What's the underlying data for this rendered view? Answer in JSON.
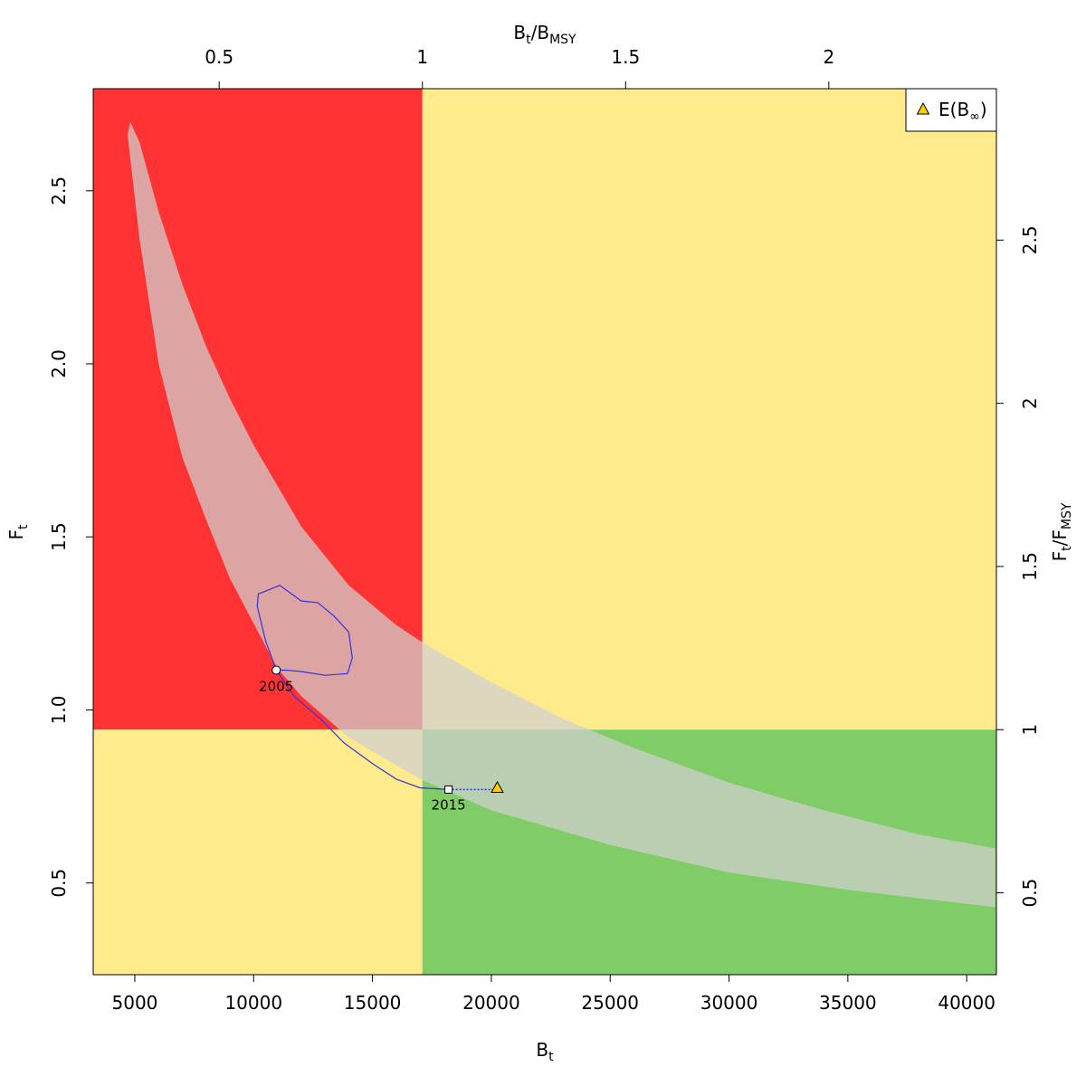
{
  "chart_data": {
    "type": "scatter",
    "axes": {
      "bottom": {
        "label": "B",
        "label_sub": "t",
        "ticks": [
          5000,
          10000,
          15000,
          20000,
          25000,
          30000,
          35000,
          40000
        ],
        "range": [
          3250,
          41250
        ]
      },
      "left": {
        "label": "F",
        "label_sub": "t",
        "ticks": [
          0.5,
          1.0,
          1.5,
          2.0,
          2.5
        ],
        "tick_labels": [
          "0.5",
          "1.0",
          "1.5",
          "2.0",
          "2.5"
        ],
        "range": [
          0.235,
          2.795
        ]
      },
      "top": {
        "label_main": "B",
        "label_sub1": "t",
        "label_slash": "/B",
        "label_sub2": "MSY",
        "ticks": [
          0.5,
          1,
          1.5,
          2
        ],
        "tick_labels": [
          "0.5",
          "1",
          "1.5",
          "2"
        ]
      },
      "right": {
        "label_main": "F",
        "label_sub1": "t",
        "label_slash": "/F",
        "label_sub2": "MSY",
        "ticks": [
          0.5,
          1,
          1.5,
          2,
          2.5
        ],
        "tick_labels": [
          "0.5",
          "1",
          "1.5",
          "2",
          "2.5"
        ]
      }
    },
    "reference": {
      "B_MSY": 17100,
      "F_MSY": 0.943
    },
    "zones": {
      "overfished_overfishing": "#ff3333",
      "caution": "#ffeb8c",
      "healthy": "#80cc66"
    },
    "confidence_band": {
      "color": "#d0d0d0",
      "upper_edge": [
        {
          "x": 4800,
          "y": 2.7
        },
        {
          "x": 5200,
          "y": 2.64
        },
        {
          "x": 6000,
          "y": 2.44
        },
        {
          "x": 7000,
          "y": 2.23
        },
        {
          "x": 8000,
          "y": 2.05
        },
        {
          "x": 9000,
          "y": 1.9
        },
        {
          "x": 10000,
          "y": 1.765
        },
        {
          "x": 12000,
          "y": 1.53
        },
        {
          "x": 14000,
          "y": 1.36
        },
        {
          "x": 16000,
          "y": 1.245
        },
        {
          "x": 17100,
          "y": 1.195
        },
        {
          "x": 20000,
          "y": 1.08
        },
        {
          "x": 23000,
          "y": 0.975
        },
        {
          "x": 26000,
          "y": 0.89
        },
        {
          "x": 30000,
          "y": 0.79
        },
        {
          "x": 34000,
          "y": 0.71
        },
        {
          "x": 38000,
          "y": 0.64
        },
        {
          "x": 41200,
          "y": 0.6
        }
      ],
      "lower_edge": [
        {
          "x": 4700,
          "y": 2.66
        },
        {
          "x": 5200,
          "y": 2.36
        },
        {
          "x": 6000,
          "y": 2.0
        },
        {
          "x": 7000,
          "y": 1.73
        },
        {
          "x": 8000,
          "y": 1.55
        },
        {
          "x": 9000,
          "y": 1.38
        },
        {
          "x": 10000,
          "y": 1.25
        },
        {
          "x": 11000,
          "y": 1.12
        },
        {
          "x": 12000,
          "y": 1.04
        },
        {
          "x": 14000,
          "y": 0.92
        },
        {
          "x": 17000,
          "y": 0.8
        },
        {
          "x": 20000,
          "y": 0.71
        },
        {
          "x": 25000,
          "y": 0.61
        },
        {
          "x": 30000,
          "y": 0.53
        },
        {
          "x": 35000,
          "y": 0.48
        },
        {
          "x": 41200,
          "y": 0.43
        }
      ]
    },
    "ellipse": {
      "color": "#3333dd",
      "points": [
        {
          "x": 10950,
          "y": 1.115
        },
        {
          "x": 10500,
          "y": 1.2
        },
        {
          "x": 10150,
          "y": 1.3
        },
        {
          "x": 10200,
          "y": 1.335
        },
        {
          "x": 11100,
          "y": 1.36
        },
        {
          "x": 11600,
          "y": 1.335
        },
        {
          "x": 12000,
          "y": 1.315
        },
        {
          "x": 12700,
          "y": 1.31
        },
        {
          "x": 13400,
          "y": 1.27
        },
        {
          "x": 14000,
          "y": 1.225
        },
        {
          "x": 14150,
          "y": 1.15
        },
        {
          "x": 13950,
          "y": 1.105
        },
        {
          "x": 13000,
          "y": 1.1
        },
        {
          "x": 12100,
          "y": 1.11
        },
        {
          "x": 11400,
          "y": 1.115
        },
        {
          "x": 10950,
          "y": 1.115
        }
      ]
    },
    "trajectory": {
      "color": "#3333dd",
      "points": [
        {
          "x": 10950,
          "y": 1.115
        },
        {
          "x": 11700,
          "y": 1.04
        },
        {
          "x": 12800,
          "y": 0.975
        },
        {
          "x": 13800,
          "y": 0.905
        },
        {
          "x": 15000,
          "y": 0.845
        },
        {
          "x": 16000,
          "y": 0.8
        },
        {
          "x": 17000,
          "y": 0.775
        },
        {
          "x": 18200,
          "y": 0.77
        }
      ]
    },
    "projection": {
      "color": "#3333dd",
      "from": {
        "x": 18200,
        "y": 0.77
      },
      "to": {
        "x": 20250,
        "y": 0.77
      }
    },
    "start_point": {
      "x": 10950,
      "y": 1.115,
      "year": "2005"
    },
    "end_point": {
      "x": 18200,
      "y": 0.77,
      "year": "2015"
    },
    "equilibrium": {
      "x": 20250,
      "y": 0.775,
      "color": "#ffcc00"
    },
    "legend": {
      "label_main": "E(B",
      "label_sub": "∞",
      "label_end": ")",
      "placement": "top-right"
    }
  }
}
